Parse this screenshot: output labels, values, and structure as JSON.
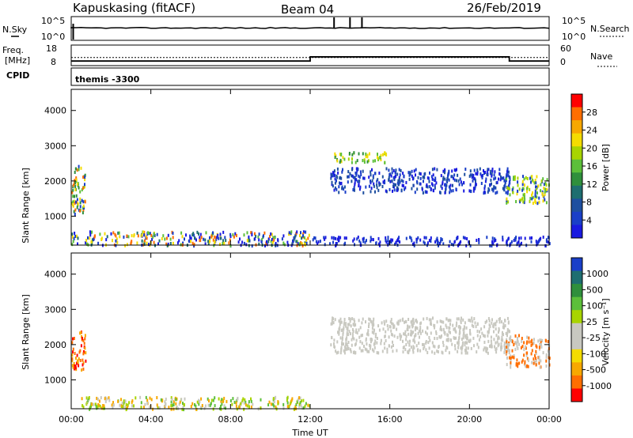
{
  "header": {
    "station": "Kapuskasing (fitACF)",
    "beam": "Beam 04",
    "date": "26/Feb/2019"
  },
  "noise_panel": {
    "left_label": "N.Sky",
    "left_ticks": [
      "10^5",
      "10^0"
    ],
    "right_ticks": [
      "10^5",
      "10^0"
    ],
    "right_label": "N.Search"
  },
  "freq_panel": {
    "left_label_1": "Freq.",
    "left_label_2": "[MHz]",
    "left_ticks": [
      "18",
      "8"
    ],
    "right_ticks": [
      "60",
      "0"
    ],
    "right_label": "Nave",
    "freq_steps": [
      {
        "t": 0.0,
        "v": 10.0
      },
      {
        "t": 0.1,
        "v": 10.0
      },
      {
        "t": 12.0,
        "v": 12.2
      },
      {
        "t": 22.0,
        "v": 10.0
      },
      {
        "t": 24.0,
        "v": 10.0
      }
    ],
    "nave_level": 23
  },
  "cpid": {
    "label": "CPID",
    "value": "themis -3300"
  },
  "chart_data": [
    {
      "type": "heatmap",
      "name": "Power",
      "ylabel": "Slant Range [km]",
      "yticks": [
        1000,
        2000,
        3000,
        4000
      ],
      "ylim": [
        180,
        4600
      ],
      "xlim": [
        0,
        24
      ],
      "colorbar": {
        "label": "Power [dB]",
        "ticks": [
          "28",
          "24",
          "20",
          "16",
          "12",
          "8",
          "4"
        ],
        "colors": [
          "#ff0000",
          "#ff6e00",
          "#f7a800",
          "#f4dc00",
          "#a8d400",
          "#5cbf3a",
          "#2f8f3c",
          "#1e6e70",
          "#1e4fa0",
          "#1a3fc8",
          "#1a1ae0"
        ]
      },
      "regions": [
        {
          "t0": 0.0,
          "t1": 0.7,
          "r0": 1050,
          "r1": 2500,
          "c": [
            "#1a3fc8",
            "#5cbf3a",
            "#f4dc00",
            "#ff6e00",
            "#2f8f3c"
          ]
        },
        {
          "t0": 0.0,
          "t1": 12.0,
          "r0": 200,
          "r1": 600,
          "c": [
            "#1a3fc8",
            "#5cbf3a",
            "#f4dc00",
            "#ff6e00",
            "#1e6e70",
            "#1a1ae0"
          ]
        },
        {
          "t0": 12.0,
          "t1": 24.0,
          "r0": 200,
          "r1": 450,
          "c": [
            "#1a3fc8",
            "#1a1ae0"
          ]
        },
        {
          "t0": 13.2,
          "t1": 15.8,
          "r0": 2550,
          "r1": 2850,
          "c": [
            "#5cbf3a",
            "#a8d400",
            "#f4dc00",
            "#2f8f3c"
          ]
        },
        {
          "t0": 13.0,
          "t1": 22.0,
          "r0": 1700,
          "r1": 2400,
          "c": [
            "#1a3fc8",
            "#1e4fa0",
            "#1a1ae0"
          ]
        },
        {
          "t0": 21.8,
          "t1": 24.0,
          "r0": 1400,
          "r1": 2200,
          "c": [
            "#a8d400",
            "#f4dc00",
            "#5cbf3a",
            "#1a3fc8"
          ]
        }
      ]
    },
    {
      "type": "heatmap",
      "name": "Velocity",
      "ylabel": "Slant Range [km]",
      "yticks": [
        1000,
        2000,
        3000,
        4000
      ],
      "ylim": [
        180,
        4600
      ],
      "xlim": [
        0,
        24
      ],
      "colorbar": {
        "label": "Velocity [m s⁻¹]",
        "ticks": [
          "1000",
          "500",
          "100",
          "25",
          "-25",
          "-100",
          "-500",
          "-1000"
        ],
        "colors": [
          "#1a3fc8",
          "#1e6e70",
          "#2f8f3c",
          "#5cbf3a",
          "#a8d400",
          "#c8c8c0",
          "#c8c8c0",
          "#f4dc00",
          "#f7a800",
          "#ff6e00",
          "#ff0000"
        ]
      },
      "regions": [
        {
          "t0": 0.0,
          "t1": 0.7,
          "r0": 1300,
          "r1": 2400,
          "c": [
            "#ff0000",
            "#ff6e00",
            "#f7a800"
          ]
        },
        {
          "t0": 0.5,
          "t1": 12.0,
          "r0": 200,
          "r1": 550,
          "c": [
            "#5cbf3a",
            "#a8d400",
            "#c8c8c0",
            "#f7a800"
          ]
        },
        {
          "t0": 13.0,
          "t1": 22.0,
          "r0": 1800,
          "r1": 2800,
          "c": [
            "#c8c8c0"
          ]
        },
        {
          "t0": 21.8,
          "t1": 24.0,
          "r0": 1400,
          "r1": 2300,
          "c": [
            "#c8c8c0",
            "#ff6e00"
          ]
        }
      ]
    }
  ],
  "xaxis": {
    "ticks": [
      "00:00",
      "04:00",
      "08:00",
      "12:00",
      "16:00",
      "20:00",
      "00:00"
    ],
    "label": "Time UT"
  }
}
